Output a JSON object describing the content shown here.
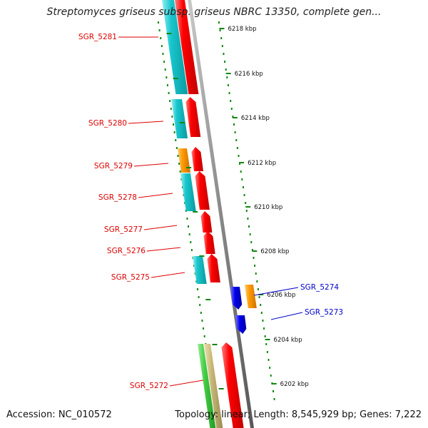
{
  "header": {
    "title": "Streptomyces griseus subsp. griseus NBRC 13350, complete gen..."
  },
  "footer": {
    "accession": "Accession: NC_010572",
    "summary": "Topology: linear; Length: 8,545,929 bp; Genes: 7,222"
  },
  "scale": {
    "ticks": [
      "6218 kbp",
      "6216 kbp",
      "6214 kbp",
      "6212 kbp",
      "6210 kbp",
      "6208 kbp",
      "6206 kbp",
      "6204 kbp",
      "6202 kbp"
    ]
  },
  "genes": {
    "forward": [
      "SGR_5281",
      "SGR_5280",
      "SGR_5279",
      "SGR_5278",
      "SGR_5277",
      "SGR_5276",
      "SGR_5275",
      "SGR_5272"
    ],
    "reverse": [
      "SGR_5274",
      "SGR_5273"
    ]
  },
  "colors": {
    "forward_label": "#dd0000",
    "reverse_label": "#0000cc",
    "cds": "#ff0000",
    "gene_teal": "#18c6cc",
    "gene_orange": "#ff9900",
    "gene_blue": "#0000ee",
    "gene_green": "#44cc44",
    "gene_tan": "#c8b878",
    "backbone": "#888888",
    "scale_dots": "#118811"
  }
}
